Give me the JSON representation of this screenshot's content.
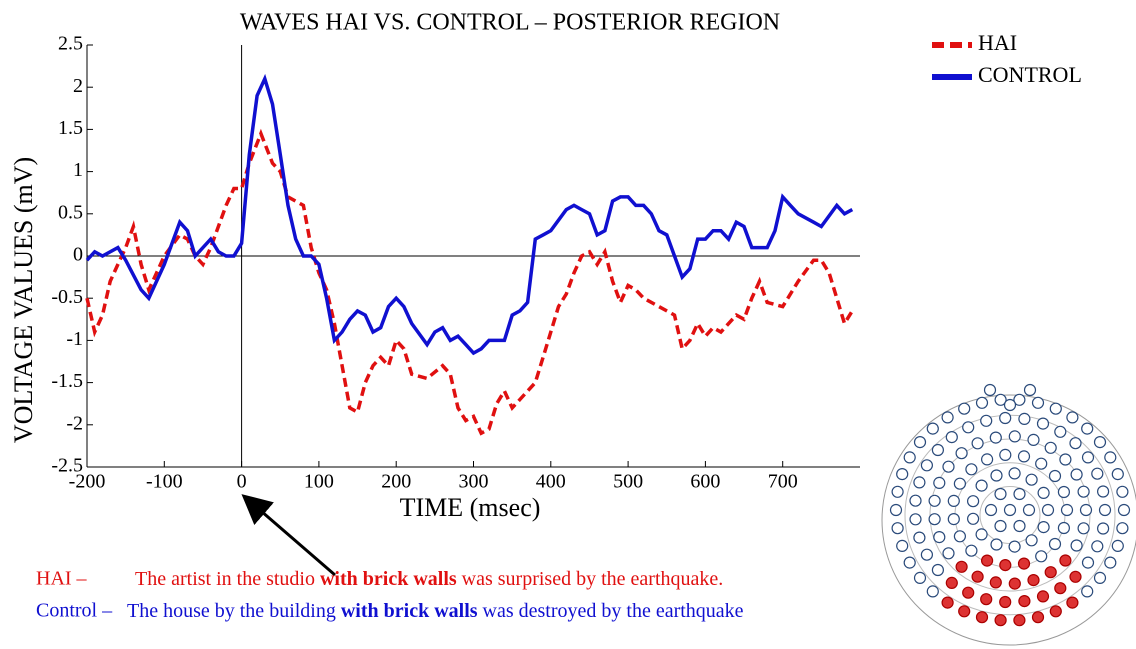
{
  "chart_data": {
    "type": "line",
    "title": "WAVES HAI VS. CONTROL – POSTERIOR REGION",
    "xlabel": "TIME (msec)",
    "ylabel": "VOLTAGE VALUES (mV)",
    "xlim": [
      -200,
      800
    ],
    "ylim": [
      -2.5,
      2.5
    ],
    "xticks": [
      -200,
      -100,
      0,
      100,
      200,
      300,
      400,
      500,
      600,
      700
    ],
    "yticks": [
      -2.5,
      -2,
      -1.5,
      -1,
      -0.5,
      0,
      0.5,
      1,
      1.5,
      2,
      2.5
    ],
    "grid": false,
    "legend": "upper right",
    "series": [
      {
        "name": "HAI",
        "color": "#e01010",
        "dashed": true,
        "x": [
          -200,
          -190,
          -180,
          -170,
          -160,
          -150,
          -140,
          -130,
          -120,
          -110,
          -100,
          -80,
          -70,
          -60,
          -50,
          -40,
          -20,
          -10,
          0,
          10,
          25,
          40,
          50,
          60,
          80,
          90,
          100,
          110,
          120,
          130,
          140,
          150,
          160,
          170,
          180,
          190,
          200,
          210,
          220,
          240,
          260,
          270,
          280,
          290,
          300,
          310,
          320,
          330,
          340,
          350,
          360,
          380,
          390,
          400,
          410,
          420,
          430,
          440,
          450,
          460,
          470,
          480,
          490,
          500,
          510,
          520,
          540,
          560,
          570,
          580,
          590,
          600,
          610,
          620,
          640,
          650,
          660,
          670,
          680,
          700,
          720,
          740,
          750,
          760,
          780,
          790
        ],
        "values": [
          -0.5,
          -0.9,
          -0.7,
          -0.3,
          -0.1,
          0.1,
          0.35,
          -0.1,
          -0.4,
          -0.2,
          0.0,
          0.25,
          0.2,
          0.0,
          -0.1,
          0.1,
          0.6,
          0.8,
          0.8,
          1.1,
          1.45,
          1.1,
          1.0,
          0.7,
          0.6,
          0.1,
          -0.2,
          -0.4,
          -0.8,
          -1.3,
          -1.8,
          -1.85,
          -1.5,
          -1.3,
          -1.2,
          -1.3,
          -1.0,
          -1.1,
          -1.4,
          -1.45,
          -1.3,
          -1.4,
          -1.8,
          -1.95,
          -1.9,
          -2.1,
          -2.05,
          -1.75,
          -1.6,
          -1.8,
          -1.7,
          -1.5,
          -1.2,
          -0.9,
          -0.6,
          -0.45,
          -0.2,
          0.0,
          0.05,
          -0.1,
          0.05,
          -0.3,
          -0.55,
          -0.35,
          -0.4,
          -0.5,
          -0.6,
          -0.7,
          -1.1,
          -1.0,
          -0.8,
          -0.95,
          -0.85,
          -0.9,
          -0.7,
          -0.75,
          -0.5,
          -0.3,
          -0.55,
          -0.6,
          -0.3,
          -0.05,
          -0.05,
          -0.2,
          -0.8,
          -0.65
        ]
      },
      {
        "name": "CONTROL",
        "color": "#1010d0",
        "dashed": false,
        "x": [
          -200,
          -190,
          -180,
          -160,
          -150,
          -130,
          -120,
          -100,
          -80,
          -70,
          -60,
          -40,
          -30,
          -20,
          -10,
          0,
          10,
          20,
          30,
          40,
          50,
          60,
          70,
          80,
          90,
          100,
          110,
          120,
          130,
          140,
          150,
          160,
          170,
          180,
          190,
          200,
          210,
          220,
          240,
          250,
          260,
          270,
          280,
          290,
          300,
          310,
          320,
          340,
          350,
          360,
          370,
          380,
          390,
          400,
          420,
          430,
          440,
          450,
          460,
          470,
          480,
          490,
          500,
          510,
          520,
          530,
          540,
          550,
          560,
          570,
          580,
          590,
          600,
          610,
          620,
          630,
          640,
          650,
          660,
          680,
          690,
          700,
          710,
          720,
          740,
          750,
          770,
          780,
          790
        ],
        "values": [
          -0.05,
          0.05,
          0.0,
          0.1,
          -0.05,
          -0.4,
          -0.5,
          -0.1,
          0.4,
          0.3,
          0.0,
          0.2,
          0.05,
          0.0,
          0.0,
          0.15,
          1.2,
          1.9,
          2.1,
          1.8,
          1.2,
          0.6,
          0.2,
          0.0,
          0.0,
          -0.1,
          -0.5,
          -1.0,
          -0.9,
          -0.75,
          -0.65,
          -0.7,
          -0.9,
          -0.85,
          -0.6,
          -0.5,
          -0.6,
          -0.8,
          -1.05,
          -0.9,
          -0.85,
          -1.0,
          -0.95,
          -1.05,
          -1.15,
          -1.1,
          -1.0,
          -1.0,
          -0.7,
          -0.65,
          -0.55,
          0.2,
          0.25,
          0.3,
          0.55,
          0.6,
          0.55,
          0.5,
          0.25,
          0.3,
          0.65,
          0.7,
          0.7,
          0.6,
          0.6,
          0.5,
          0.3,
          0.25,
          0.0,
          -0.25,
          -0.15,
          0.2,
          0.2,
          0.3,
          0.3,
          0.2,
          0.4,
          0.35,
          0.1,
          0.1,
          0.3,
          0.7,
          0.6,
          0.5,
          0.4,
          0.35,
          0.6,
          0.5,
          0.55
        ]
      }
    ],
    "annotations": [
      {
        "color": "#e01010",
        "label": "HAI –",
        "parts": [
          "The artist in the studio",
          "with brick walls",
          "was surprised by the earthquake."
        ]
      },
      {
        "color": "#1010d0",
        "label": "Control –",
        "parts": [
          "The house by the building",
          "with brick walls",
          "was destroyed by the earthquake"
        ]
      }
    ]
  }
}
